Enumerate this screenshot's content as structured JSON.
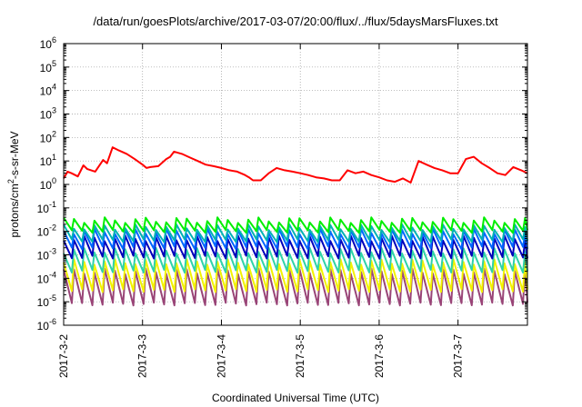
{
  "chart_data": {
    "type": "line",
    "title": "/data/run/goesPlots/archive/2017-03-07/20:00/flux/../flux/5daysMarsFluxes.txt",
    "xlabel": "Coordinated Universal Time (UTC)",
    "ylabel": "protons/cm²-s-sr-MeV",
    "yscale": "log",
    "ylim": [
      1e-06,
      1000000.0
    ],
    "xlim": [
      0,
      5.88
    ],
    "x_unit": "days since 2017-3-2",
    "xticks": [
      {
        "x": 0,
        "label": "2017-3-2"
      },
      {
        "x": 1,
        "label": "2017-3-3"
      },
      {
        "x": 2,
        "label": "2017-3-4"
      },
      {
        "x": 3,
        "label": "2017-3-5"
      },
      {
        "x": 4,
        "label": "2017-3-6"
      },
      {
        "x": 5,
        "label": "2017-3-7"
      }
    ],
    "yticks": [
      {
        "exp": -6,
        "label": "10",
        "sup": "-6"
      },
      {
        "exp": -5,
        "label": "10",
        "sup": "-5"
      },
      {
        "exp": -4,
        "label": "10",
        "sup": "-4"
      },
      {
        "exp": -3,
        "label": "10",
        "sup": "-3"
      },
      {
        "exp": -2,
        "label": "10",
        "sup": "-2"
      },
      {
        "exp": -1,
        "label": "10",
        "sup": "-1"
      },
      {
        "exp": 0,
        "label": "10",
        "sup": "0"
      },
      {
        "exp": 1,
        "label": "10",
        "sup": "1"
      },
      {
        "exp": 2,
        "label": "10",
        "sup": "2"
      },
      {
        "exp": 3,
        "label": "10",
        "sup": "3"
      },
      {
        "exp": 4,
        "label": "10",
        "sup": "4"
      },
      {
        "exp": 5,
        "label": "10",
        "sup": "5"
      },
      {
        "exp": 6,
        "label": "10",
        "sup": "6"
      }
    ],
    "grid": "dotted",
    "legend": "none",
    "sawtooth_period": 0.13,
    "series": [
      {
        "color": "#ff0000",
        "width": 2,
        "x": [
          0,
          0.05,
          0.1,
          0.18,
          0.25,
          0.3,
          0.4,
          0.5,
          0.55,
          0.62,
          0.7,
          0.8,
          0.9,
          1.0,
          1.05,
          1.1,
          1.2,
          1.3,
          1.35,
          1.4,
          1.5,
          1.6,
          1.7,
          1.8,
          1.9,
          2.0,
          2.1,
          2.2,
          2.3,
          2.35,
          2.4,
          2.5,
          2.6,
          2.7,
          2.8,
          2.9,
          3.0,
          3.1,
          3.2,
          3.3,
          3.4,
          3.5,
          3.6,
          3.7,
          3.8,
          3.9,
          4.0,
          4.1,
          4.2,
          4.3,
          4.4,
          4.5,
          4.6,
          4.7,
          4.8,
          4.9,
          5.0,
          5.05,
          5.1,
          5.2,
          5.3,
          5.4,
          5.5,
          5.6,
          5.7,
          5.8,
          5.88
        ],
        "y": [
          1.8,
          3.5,
          3,
          2.2,
          6.5,
          4.5,
          3.5,
          11,
          8,
          38,
          28,
          20,
          12,
          7,
          5,
          5.5,
          6,
          12,
          15,
          25,
          20,
          14,
          10,
          7,
          6,
          5,
          4,
          3.5,
          2.5,
          2,
          1.5,
          1.5,
          3,
          5,
          4,
          3.5,
          3,
          2.5,
          2,
          1.8,
          1.5,
          1.5,
          4,
          3,
          3.5,
          2.5,
          2,
          1.5,
          1.3,
          1.8,
          1.2,
          10,
          7,
          5,
          4,
          3,
          3,
          6,
          12,
          15,
          8,
          5,
          3,
          2.5,
          5.5,
          4,
          3
        ]
      },
      {
        "color": "#00ee00",
        "width": 2,
        "peak": 0.03,
        "trough": 0.01
      },
      {
        "color": "#00b3b3",
        "width": 2,
        "peak": 0.015,
        "trough": 0.004
      },
      {
        "color": "#0066ff",
        "width": 2,
        "peak": 0.01,
        "trough": 0.002
      },
      {
        "color": "#0000bb",
        "width": 2,
        "peak": 0.005,
        "trough": 0.0008
      },
      {
        "color": "#2fd3a8",
        "width": 2,
        "peak": 0.0015,
        "trough": 0.0002
      },
      {
        "color": "#f2f200",
        "width": 2,
        "peak": 0.0005,
        "trough": 3e-05
      },
      {
        "color": "#994477",
        "width": 2,
        "peak": 0.0002,
        "trough": 8e-06
      }
    ]
  }
}
